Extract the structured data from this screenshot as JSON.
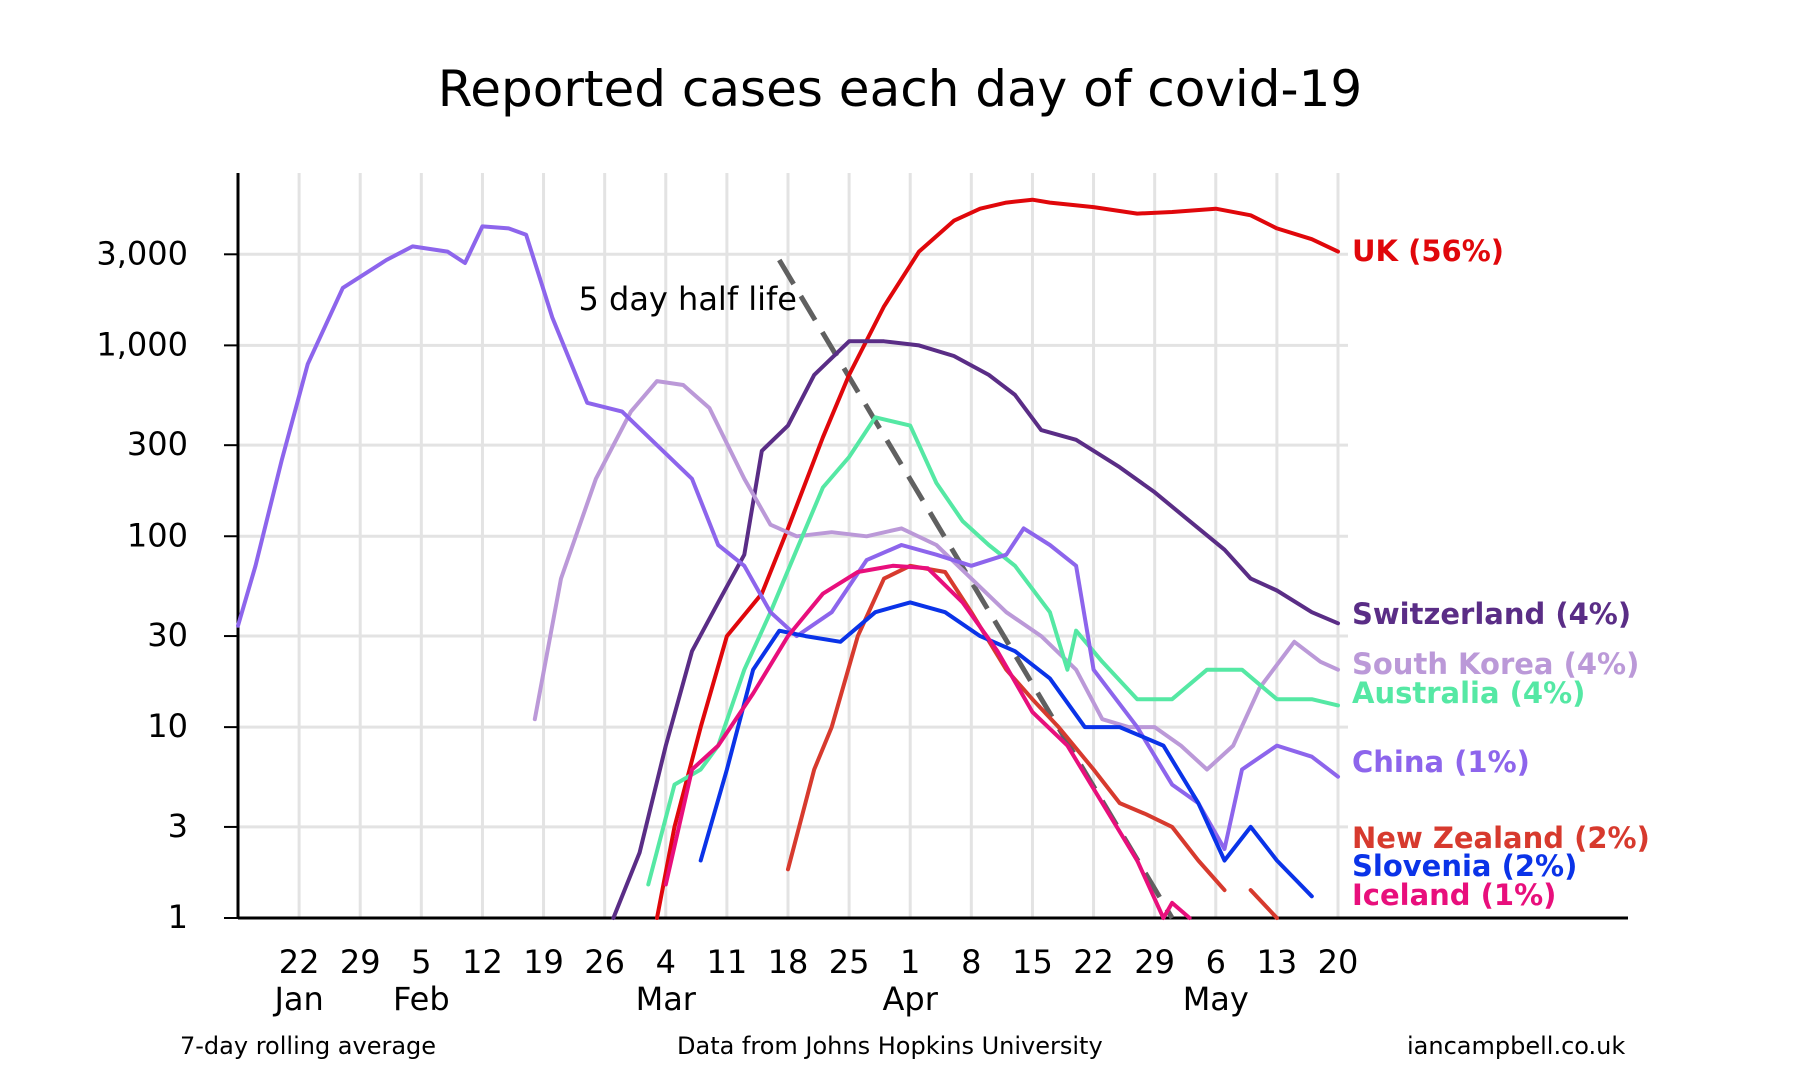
{
  "chart_data": {
    "type": "line",
    "title": "Reported cases each day of covid-19",
    "y_scale": "log",
    "ylim": [
      1,
      8000
    ],
    "y_ticks": [
      1,
      3,
      10,
      30,
      100,
      300,
      1000,
      3000
    ],
    "y_tick_labels": [
      "1",
      "3",
      "10",
      "30",
      "100",
      "300",
      "1,000",
      "3,000"
    ],
    "x_domain": [
      "2020-01-15",
      "2020-05-20"
    ],
    "x_ticks": [
      {
        "date": "2020-01-22",
        "label": "22"
      },
      {
        "date": "2020-01-29",
        "label": "29"
      },
      {
        "date": "2020-02-05",
        "label": "5"
      },
      {
        "date": "2020-02-12",
        "label": "12"
      },
      {
        "date": "2020-02-19",
        "label": "19"
      },
      {
        "date": "2020-02-26",
        "label": "26"
      },
      {
        "date": "2020-03-04",
        "label": "4"
      },
      {
        "date": "2020-03-11",
        "label": "11"
      },
      {
        "date": "2020-03-18",
        "label": "18"
      },
      {
        "date": "2020-03-25",
        "label": "25"
      },
      {
        "date": "2020-04-01",
        "label": "1"
      },
      {
        "date": "2020-04-08",
        "label": "8"
      },
      {
        "date": "2020-04-15",
        "label": "15"
      },
      {
        "date": "2020-04-22",
        "label": "22"
      },
      {
        "date": "2020-04-29",
        "label": "29"
      },
      {
        "date": "2020-05-06",
        "label": "6"
      },
      {
        "date": "2020-05-13",
        "label": "13"
      },
      {
        "date": "2020-05-20",
        "label": "20"
      }
    ],
    "month_labels": [
      {
        "date": "2020-01-22",
        "label": "Jan"
      },
      {
        "date": "2020-02-05",
        "label": "Feb"
      },
      {
        "date": "2020-03-04",
        "label": "Mar"
      },
      {
        "date": "2020-04-01",
        "label": "Apr"
      },
      {
        "date": "2020-05-06",
        "label": "May"
      }
    ],
    "grid": true,
    "annotation": {
      "text": "5 day half life",
      "line": [
        [
          "2020-03-17",
          2800
        ],
        [
          "2020-05-01",
          1
        ]
      ]
    },
    "series": [
      {
        "name": "UK (56%)",
        "color": "#e0070b",
        "points": [
          [
            "2020-03-03",
            1
          ],
          [
            "2020-03-05",
            3
          ],
          [
            "2020-03-08",
            10
          ],
          [
            "2020-03-11",
            30
          ],
          [
            "2020-03-15",
            50
          ],
          [
            "2020-03-18",
            110
          ],
          [
            "2020-03-22",
            330
          ],
          [
            "2020-03-25",
            700
          ],
          [
            "2020-03-29",
            1600
          ],
          [
            "2020-04-02",
            3100
          ],
          [
            "2020-04-06",
            4500
          ],
          [
            "2020-04-09",
            5200
          ],
          [
            "2020-04-12",
            5600
          ],
          [
            "2020-04-15",
            5800
          ],
          [
            "2020-04-17",
            5600
          ],
          [
            "2020-04-22",
            5300
          ],
          [
            "2020-04-27",
            4900
          ],
          [
            "2020-05-01",
            5000
          ],
          [
            "2020-05-06",
            5200
          ],
          [
            "2020-05-10",
            4800
          ],
          [
            "2020-05-13",
            4100
          ],
          [
            "2020-05-17",
            3600
          ],
          [
            "2020-05-20",
            3100
          ]
        ]
      },
      {
        "name": "Switzerland (4%)",
        "color": "#5a2d86",
        "points": [
          [
            "2020-02-27",
            1
          ],
          [
            "2020-03-01",
            2.2
          ],
          [
            "2020-03-04",
            8
          ],
          [
            "2020-03-07",
            25
          ],
          [
            "2020-03-10",
            45
          ],
          [
            "2020-03-13",
            80
          ],
          [
            "2020-03-15",
            280
          ],
          [
            "2020-03-18",
            380
          ],
          [
            "2020-03-21",
            700
          ],
          [
            "2020-03-25",
            1050
          ],
          [
            "2020-03-29",
            1050
          ],
          [
            "2020-04-02",
            1000
          ],
          [
            "2020-04-06",
            880
          ],
          [
            "2020-04-10",
            700
          ],
          [
            "2020-04-13",
            550
          ],
          [
            "2020-04-16",
            360
          ],
          [
            "2020-04-20",
            320
          ],
          [
            "2020-04-25",
            230
          ],
          [
            "2020-04-29",
            170
          ],
          [
            "2020-05-03",
            120
          ],
          [
            "2020-05-07",
            85
          ],
          [
            "2020-05-10",
            60
          ],
          [
            "2020-05-13",
            52
          ],
          [
            "2020-05-17",
            40
          ],
          [
            "2020-05-20",
            35
          ]
        ]
      },
      {
        "name": "South Korea (4%)",
        "color": "#bb99d8",
        "points": [
          [
            "2020-02-18",
            11
          ],
          [
            "2020-02-21",
            60
          ],
          [
            "2020-02-25",
            200
          ],
          [
            "2020-02-29",
            450
          ],
          [
            "2020-03-03",
            650
          ],
          [
            "2020-03-06",
            620
          ],
          [
            "2020-03-09",
            470
          ],
          [
            "2020-03-13",
            200
          ],
          [
            "2020-03-16",
            115
          ],
          [
            "2020-03-19",
            100
          ],
          [
            "2020-03-23",
            105
          ],
          [
            "2020-03-27",
            100
          ],
          [
            "2020-03-31",
            110
          ],
          [
            "2020-04-04",
            90
          ],
          [
            "2020-04-08",
            60
          ],
          [
            "2020-04-12",
            40
          ],
          [
            "2020-04-16",
            30
          ],
          [
            "2020-04-20",
            20
          ],
          [
            "2020-04-23",
            11
          ],
          [
            "2020-04-26",
            10
          ],
          [
            "2020-04-29",
            10
          ],
          [
            "2020-05-02",
            8
          ],
          [
            "2020-05-05",
            6
          ],
          [
            "2020-05-08",
            8
          ],
          [
            "2020-05-11",
            16
          ],
          [
            "2020-05-15",
            28
          ],
          [
            "2020-05-18",
            22
          ],
          [
            "2020-05-20",
            20
          ]
        ]
      },
      {
        "name": "Australia  (4%)",
        "color": "#55e8a4",
        "points": [
          [
            "2020-03-02",
            1.5
          ],
          [
            "2020-03-05",
            5
          ],
          [
            "2020-03-08",
            6
          ],
          [
            "2020-03-10",
            8
          ],
          [
            "2020-03-13",
            20
          ],
          [
            "2020-03-16",
            40
          ],
          [
            "2020-03-19",
            85
          ],
          [
            "2020-03-22",
            180
          ],
          [
            "2020-03-25",
            260
          ],
          [
            "2020-03-28",
            420
          ],
          [
            "2020-04-01",
            380
          ],
          [
            "2020-04-04",
            190
          ],
          [
            "2020-04-07",
            120
          ],
          [
            "2020-04-10",
            90
          ],
          [
            "2020-04-13",
            70
          ],
          [
            "2020-04-17",
            40
          ],
          [
            "2020-04-19",
            20
          ],
          [
            "2020-04-20",
            32
          ],
          [
            "2020-04-23",
            22
          ],
          [
            "2020-04-27",
            14
          ],
          [
            "2020-05-01",
            14
          ],
          [
            "2020-05-05",
            20
          ],
          [
            "2020-05-09",
            20
          ],
          [
            "2020-05-13",
            14
          ],
          [
            "2020-05-17",
            14
          ],
          [
            "2020-05-20",
            13
          ]
        ]
      },
      {
        "name": "China (1%)",
        "color": "#8d65ec",
        "points": [
          [
            "2020-01-15",
            34
          ],
          [
            "2020-01-17",
            70
          ],
          [
            "2020-01-20",
            250
          ],
          [
            "2020-01-23",
            800
          ],
          [
            "2020-01-27",
            2000
          ],
          [
            "2020-02-01",
            2800
          ],
          [
            "2020-02-04",
            3300
          ],
          [
            "2020-02-08",
            3100
          ],
          [
            "2020-02-10",
            2700
          ],
          [
            "2020-02-12",
            4200
          ],
          [
            "2020-02-15",
            4100
          ],
          [
            "2020-02-17",
            3800
          ],
          [
            "2020-02-20",
            1400
          ],
          [
            "2020-02-24",
            500
          ],
          [
            "2020-02-28",
            450
          ],
          [
            "2020-03-03",
            300
          ],
          [
            "2020-03-07",
            200
          ],
          [
            "2020-03-10",
            90
          ],
          [
            "2020-03-13",
            70
          ],
          [
            "2020-03-16",
            40
          ],
          [
            "2020-03-19",
            30
          ],
          [
            "2020-03-23",
            40
          ],
          [
            "2020-03-27",
            75
          ],
          [
            "2020-03-31",
            90
          ],
          [
            "2020-04-04",
            80
          ],
          [
            "2020-04-08",
            70
          ],
          [
            "2020-04-12",
            80
          ],
          [
            "2020-04-14",
            110
          ],
          [
            "2020-04-17",
            90
          ],
          [
            "2020-04-20",
            70
          ],
          [
            "2020-04-22",
            20
          ],
          [
            "2020-04-27",
            10
          ],
          [
            "2020-05-01",
            5
          ],
          [
            "2020-05-04",
            4
          ],
          [
            "2020-05-07",
            2.3
          ],
          [
            "2020-05-09",
            6
          ],
          [
            "2020-05-13",
            8
          ],
          [
            "2020-05-17",
            7
          ],
          [
            "2020-05-20",
            5.5
          ]
        ]
      },
      {
        "name": "New Zealand  (2%)",
        "color": "#d73a2e",
        "points": [
          [
            "2020-03-18",
            1.8
          ],
          [
            "2020-03-21",
            6
          ],
          [
            "2020-03-23",
            10
          ],
          [
            "2020-03-26",
            30
          ],
          [
            "2020-03-29",
            60
          ],
          [
            "2020-04-01",
            70
          ],
          [
            "2020-04-05",
            65
          ],
          [
            "2020-04-08",
            40
          ],
          [
            "2020-04-12",
            20
          ],
          [
            "2020-04-15",
            14
          ],
          [
            "2020-04-18",
            10
          ],
          [
            "2020-04-22",
            6
          ],
          [
            "2020-04-25",
            4
          ],
          [
            "2020-04-28",
            3.5
          ],
          [
            "2020-05-01",
            3
          ],
          [
            "2020-05-04",
            2
          ],
          [
            "2020-05-07",
            1.4
          ],
          null,
          [
            "2020-05-10",
            1.4
          ],
          [
            "2020-05-13",
            1
          ]
        ]
      },
      {
        "name": "Slovenia (2%)",
        "color": "#0a33e8",
        "points": [
          [
            "2020-03-08",
            2
          ],
          [
            "2020-03-11",
            6
          ],
          [
            "2020-03-14",
            20
          ],
          [
            "2020-03-17",
            32
          ],
          [
            "2020-03-20",
            30
          ],
          [
            "2020-03-24",
            28
          ],
          [
            "2020-03-28",
            40
          ],
          [
            "2020-04-01",
            45
          ],
          [
            "2020-04-05",
            40
          ],
          [
            "2020-04-09",
            30
          ],
          [
            "2020-04-13",
            25
          ],
          [
            "2020-04-17",
            18
          ],
          [
            "2020-04-21",
            10
          ],
          [
            "2020-04-25",
            10
          ],
          [
            "2020-04-30",
            8
          ],
          [
            "2020-05-04",
            4
          ],
          [
            "2020-05-07",
            2
          ],
          [
            "2020-05-10",
            3
          ],
          [
            "2020-05-13",
            2
          ],
          [
            "2020-05-17",
            1.3
          ]
        ]
      },
      {
        "name": "Iceland (1%)",
        "color": "#e80f7c",
        "points": [
          [
            "2020-03-04",
            1.5
          ],
          [
            "2020-03-07",
            6
          ],
          [
            "2020-03-10",
            8
          ],
          [
            "2020-03-14",
            15
          ],
          [
            "2020-03-18",
            30
          ],
          [
            "2020-03-22",
            50
          ],
          [
            "2020-03-26",
            65
          ],
          [
            "2020-03-30",
            70
          ],
          [
            "2020-04-03",
            68
          ],
          [
            "2020-04-07",
            45
          ],
          [
            "2020-04-11",
            25
          ],
          [
            "2020-04-15",
            12
          ],
          [
            "2020-04-19",
            8
          ],
          [
            "2020-04-23",
            4
          ],
          [
            "2020-04-27",
            2
          ],
          [
            "2020-04-30",
            1
          ],
          [
            "2020-05-01",
            1.2
          ],
          [
            "2020-05-03",
            1
          ]
        ]
      }
    ],
    "labels": [
      {
        "text": "UK (56%)",
        "color": "#e0070b"
      },
      {
        "text": "Switzerland (4%)",
        "color": "#5a2d86"
      },
      {
        "text": "South Korea (4%)",
        "color": "#bb99d8"
      },
      {
        "text": "Australia  (4%)",
        "color": "#55e8a4"
      },
      {
        "text": "China (1%)",
        "color": "#8d65ec"
      },
      {
        "text": "New Zealand  (2%)",
        "color": "#d73a2e"
      },
      {
        "text": "Slovenia (2%)",
        "color": "#0a33e8"
      },
      {
        "text": "Iceland (1%)",
        "color": "#e80f7c"
      }
    ]
  },
  "footer": {
    "left": "7-day rolling average",
    "center": "Data from Johns Hopkins University",
    "right": "iancampbell.co.uk"
  }
}
